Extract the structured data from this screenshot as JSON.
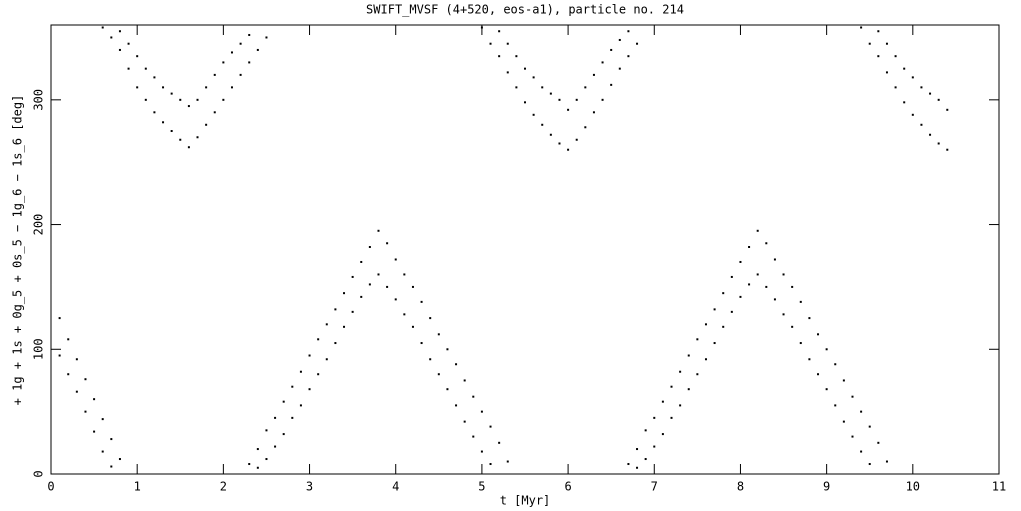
{
  "chart_data": {
    "type": "scatter",
    "title": "SWIFT_MVSF (4+520, eos-a1), particle no. 214",
    "x_label": "t [Myr]",
    "y_label": "+ 1g + 1s + 0g_5 + 0s_5 − 1g_6 − 1s_6 [deg]",
    "xlim": [
      0,
      11
    ],
    "ylim": [
      0,
      360
    ],
    "xticks": [
      0,
      1,
      2,
      3,
      4,
      5,
      6,
      7,
      8,
      9,
      10,
      11
    ],
    "yticks": [
      0,
      100,
      200,
      300
    ],
    "color": "#000000",
    "x": [
      0.1,
      0.1,
      0.2,
      0.2,
      0.3,
      0.3,
      0.4,
      0.4,
      0.5,
      0.5,
      0.6,
      0.6,
      0.7,
      0.7,
      0.8,
      0.6,
      0.7,
      0.8,
      0.8,
      0.9,
      0.9,
      1.0,
      1.0,
      1.1,
      1.1,
      1.2,
      1.2,
      1.3,
      1.3,
      1.4,
      1.4,
      1.5,
      1.5,
      1.6,
      1.6,
      1.7,
      1.7,
      1.8,
      1.8,
      1.9,
      1.9,
      2.0,
      2.0,
      2.1,
      2.1,
      2.2,
      2.2,
      2.3,
      2.3,
      2.4,
      2.5,
      2.3,
      2.4,
      2.4,
      2.5,
      2.5,
      2.6,
      2.6,
      2.7,
      2.7,
      2.8,
      2.8,
      2.9,
      2.9,
      3.0,
      3.0,
      3.1,
      3.1,
      3.2,
      3.2,
      3.3,
      3.3,
      3.4,
      3.4,
      3.5,
      3.5,
      3.6,
      3.6,
      3.7,
      3.7,
      3.8,
      3.8,
      3.9,
      3.9,
      4.0,
      4.0,
      4.1,
      4.1,
      4.2,
      4.2,
      4.3,
      4.3,
      4.4,
      4.4,
      4.5,
      4.5,
      4.6,
      4.6,
      4.7,
      4.7,
      4.8,
      4.8,
      4.9,
      4.9,
      5.0,
      5.0,
      5.1,
      5.1,
      5.2,
      5.3,
      5.0,
      5.1,
      5.2,
      5.2,
      5.3,
      5.3,
      5.4,
      5.4,
      5.5,
      5.5,
      5.6,
      5.6,
      5.7,
      5.7,
      5.8,
      5.8,
      5.9,
      5.9,
      6.0,
      6.0,
      6.1,
      6.1,
      6.2,
      6.2,
      6.3,
      6.3,
      6.4,
      6.4,
      6.5,
      6.5,
      6.6,
      6.6,
      6.7,
      6.7,
      6.8,
      6.7,
      6.8,
      6.8,
      6.9,
      6.9,
      7.0,
      7.0,
      7.1,
      7.1,
      7.2,
      7.2,
      7.3,
      7.3,
      7.4,
      7.4,
      7.5,
      7.5,
      7.6,
      7.6,
      7.7,
      7.7,
      7.8,
      7.8,
      7.9,
      7.9,
      8.0,
      8.0,
      8.1,
      8.1,
      8.2,
      8.2,
      8.3,
      8.3,
      8.4,
      8.4,
      8.5,
      8.5,
      8.6,
      8.6,
      8.7,
      8.7,
      8.8,
      8.8,
      8.9,
      8.9,
      9.0,
      9.0,
      9.1,
      9.1,
      9.2,
      9.2,
      9.3,
      9.3,
      9.4,
      9.4,
      9.5,
      9.5,
      9.6,
      9.7,
      9.4,
      9.5,
      9.6,
      9.6,
      9.7,
      9.7,
      9.8,
      9.8,
      9.9,
      9.9,
      10.0,
      10.0,
      10.1,
      10.1,
      10.2,
      10.2,
      10.3,
      10.3,
      10.4,
      10.4
    ],
    "y": [
      125,
      95,
      108,
      80,
      92,
      66,
      76,
      50,
      60,
      34,
      44,
      18,
      28,
      6,
      12,
      358,
      350,
      340,
      355,
      325,
      345,
      310,
      335,
      300,
      325,
      290,
      318,
      282,
      310,
      275,
      305,
      268,
      300,
      262,
      295,
      270,
      300,
      280,
      310,
      290,
      320,
      300,
      330,
      310,
      338,
      320,
      345,
      330,
      352,
      340,
      350,
      8,
      20,
      5,
      35,
      12,
      45,
      22,
      58,
      32,
      70,
      45,
      82,
      55,
      95,
      68,
      108,
      80,
      120,
      92,
      132,
      105,
      145,
      118,
      158,
      130,
      170,
      142,
      182,
      152,
      195,
      160,
      185,
      150,
      172,
      140,
      160,
      128,
      150,
      118,
      138,
      105,
      125,
      92,
      112,
      80,
      100,
      68,
      88,
      55,
      75,
      42,
      62,
      30,
      50,
      18,
      38,
      8,
      25,
      10,
      358,
      345,
      335,
      355,
      322,
      345,
      310,
      335,
      298,
      325,
      288,
      318,
      280,
      310,
      272,
      305,
      265,
      300,
      260,
      292,
      268,
      300,
      278,
      310,
      290,
      320,
      300,
      330,
      312,
      340,
      325,
      348,
      335,
      355,
      345,
      8,
      20,
      5,
      35,
      12,
      45,
      22,
      58,
      32,
      70,
      45,
      82,
      55,
      95,
      68,
      108,
      80,
      120,
      92,
      132,
      105,
      145,
      118,
      158,
      130,
      170,
      142,
      182,
      152,
      195,
      160,
      185,
      150,
      172,
      140,
      160,
      128,
      150,
      118,
      138,
      105,
      125,
      92,
      112,
      80,
      100,
      68,
      88,
      55,
      75,
      42,
      62,
      30,
      50,
      18,
      38,
      8,
      25,
      10,
      358,
      345,
      335,
      355,
      322,
      345,
      310,
      335,
      298,
      325,
      288,
      318,
      280,
      310,
      272,
      305,
      265,
      300,
      260,
      292
    ]
  }
}
